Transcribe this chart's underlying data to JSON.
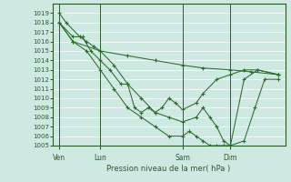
{
  "xlabel": "Pression niveau de la mer( hPa )",
  "ylim": [
    1005,
    1020
  ],
  "ytick_min": 1005,
  "ytick_max": 1019,
  "bg_color": "#cde9e2",
  "grid_color": "#b8d8d0",
  "grid_major_color": "#ffffff",
  "line_color": "#2d6b2d",
  "axis_color": "#2d5a2d",
  "xtick_labels": [
    "Ven",
    "Lun",
    "Sam",
    "Dim"
  ],
  "xtick_positions": [
    0.5,
    3.5,
    9.5,
    13.0
  ],
  "vline_positions": [
    0.5,
    3.5,
    9.5,
    13.0
  ],
  "xlim": [
    0,
    17
  ],
  "lines": [
    {
      "x": [
        0.5,
        1.5,
        3.5,
        5.5,
        7.5,
        9.5,
        11.0,
        13.0,
        14.5,
        16.5
      ],
      "y": [
        1018,
        1016,
        1015,
        1014.5,
        1014,
        1013.5,
        1013.2,
        1013,
        1012.8,
        1012.5
      ]
    },
    {
      "x": [
        0.5,
        1.0,
        2.0,
        2.5,
        3.0,
        3.5,
        4.5,
        5.5,
        6.5,
        7.5,
        8.5,
        9.5,
        10.5,
        11.0,
        11.5,
        12.0,
        12.5,
        13.0,
        14.0,
        14.8,
        15.5,
        16.5
      ],
      "y": [
        1019,
        1018,
        1016.5,
        1016,
        1015.5,
        1015,
        1013.5,
        1011.5,
        1010,
        1008.5,
        1008,
        1007.5,
        1008,
        1009,
        1008,
        1007,
        1005.5,
        1005,
        1005.5,
        1009,
        1012,
        1012
      ]
    },
    {
      "x": [
        0.5,
        1.5,
        2.2,
        2.8,
        3.5,
        4.2,
        5.0,
        5.5,
        6.0,
        6.5,
        7.0,
        7.5,
        8.0,
        8.5,
        9.0,
        9.5,
        10.5,
        11.0,
        12.0,
        13.0,
        14.0,
        15.0,
        16.5
      ],
      "y": [
        1018,
        1016.5,
        1016.5,
        1015,
        1014,
        1013,
        1011.5,
        1011.5,
        1009,
        1008.5,
        1009,
        1008.5,
        1009,
        1010,
        1009.5,
        1008.8,
        1009.5,
        1010.5,
        1012,
        1012.5,
        1013,
        1013,
        1012.5
      ]
    },
    {
      "x": [
        0.5,
        1.5,
        2.5,
        3.5,
        4.5,
        5.5,
        6.5,
        7.5,
        8.5,
        9.5,
        10.0,
        10.5,
        11.0,
        11.5,
        12.0,
        12.5,
        13.0,
        14.0,
        15.0,
        16.5
      ],
      "y": [
        1018,
        1016,
        1015,
        1013,
        1011,
        1009,
        1008,
        1007,
        1006,
        1006,
        1006.5,
        1006,
        1005.5,
        1005,
        1005,
        1005,
        1005,
        1012,
        1013,
        1012.5
      ]
    }
  ]
}
